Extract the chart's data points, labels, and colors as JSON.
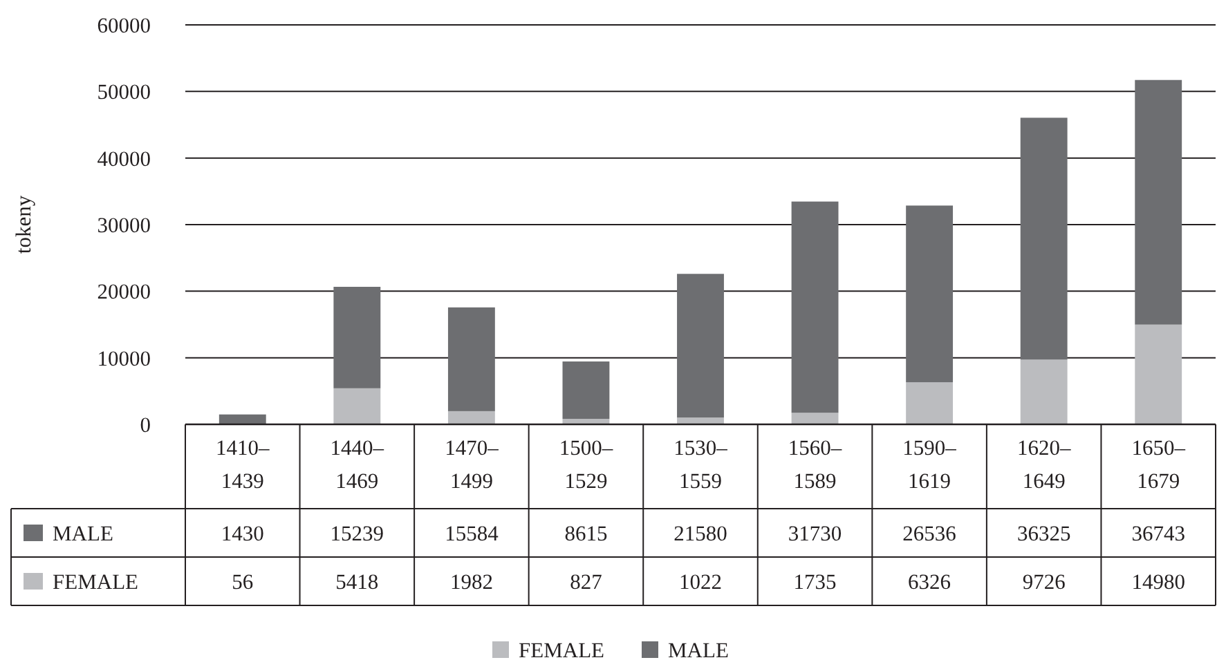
{
  "chart_data": {
    "type": "bar",
    "ylabel": "tokeny",
    "categories": [
      "1410–1439",
      "1440–1469",
      "1470–1499",
      "1500–1529",
      "1530–1559",
      "1560–1589",
      "1590–1619",
      "1620–1649",
      "1650–1679"
    ],
    "series": [
      {
        "name": "FEMALE",
        "color": "#bbbcbf",
        "values": [
          56,
          5418,
          1982,
          827,
          1022,
          1735,
          6326,
          9726,
          14980
        ]
      },
      {
        "name": "MALE",
        "color": "#6d6e71",
        "values": [
          1430,
          15239,
          15584,
          8615,
          21580,
          31730,
          26536,
          36325,
          36743
        ]
      }
    ],
    "stacked": true,
    "ylim": [
      0,
      60000
    ],
    "yticks": [
      0,
      10000,
      20000,
      30000,
      40000,
      50000,
      60000
    ],
    "grid": "y",
    "legend": "bottom",
    "data_labels": true
  }
}
